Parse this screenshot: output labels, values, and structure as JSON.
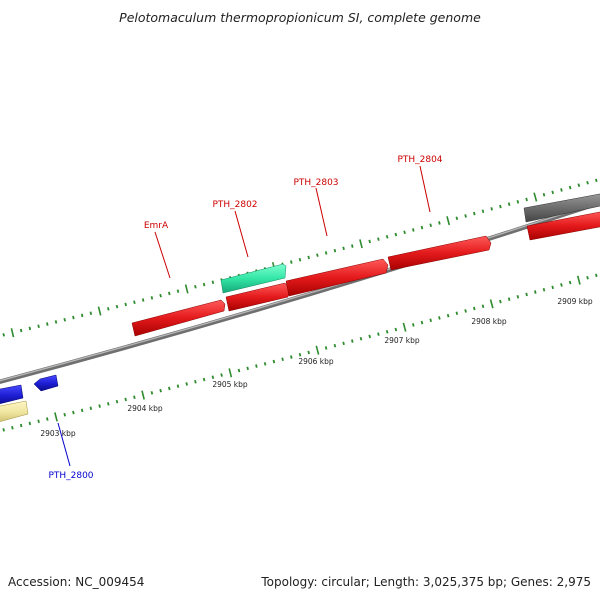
{
  "title": "Pelotomaculum thermopropionicum SI, complete genome",
  "footer": {
    "accession": "Accession: NC_009454",
    "summary": "Topology: circular; Length: 3,025,375 bp; Genes: 2,975"
  },
  "scale": {
    "unit": "kbp",
    "ticks": [
      {
        "label": "2903 kbp"
      },
      {
        "label": "2904 kbp"
      },
      {
        "label": "2905 kbp"
      },
      {
        "label": "2906 kbp"
      },
      {
        "label": "2907 kbp"
      },
      {
        "label": "2908 kbp"
      },
      {
        "label": "2909 kbp"
      }
    ]
  },
  "gene_labels": [
    {
      "text": "EmrA",
      "color": "#cc0000"
    },
    {
      "text": "PTH_2802",
      "color": "#cc0000"
    },
    {
      "text": "PTH_2803",
      "color": "#cc0000"
    },
    {
      "text": "PTH_2804",
      "color": "#cc0000"
    },
    {
      "text": "PTH_2800",
      "color": "#0000cc"
    }
  ],
  "colors": {
    "forward_gene": "#e41a1c",
    "reverse_gene": "#1f1fd6",
    "rna_gene": "#33e6a6",
    "pseudo_gene": "#f0e6a0",
    "other_gene": "#6e6e6e",
    "tick": "#2e8b2e",
    "backbone": "#808080"
  }
}
